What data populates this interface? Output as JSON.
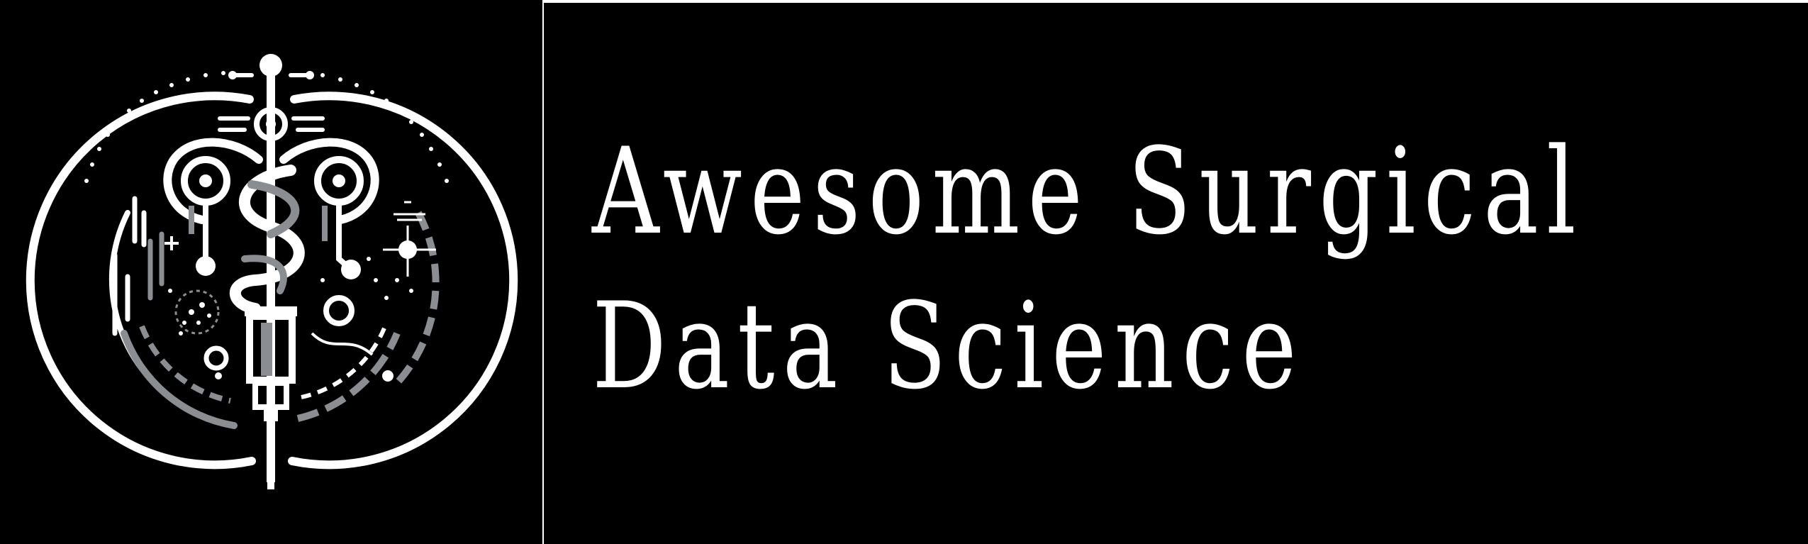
{
  "title": {
    "line1": "Awesome Surgical",
    "line2": "Data Science"
  },
  "logo": {
    "icon": "caduceus-circuit-logo-icon"
  },
  "colors": {
    "background": "#000000",
    "foreground": "#ffffff",
    "accent_gray": "#8a8d91"
  }
}
